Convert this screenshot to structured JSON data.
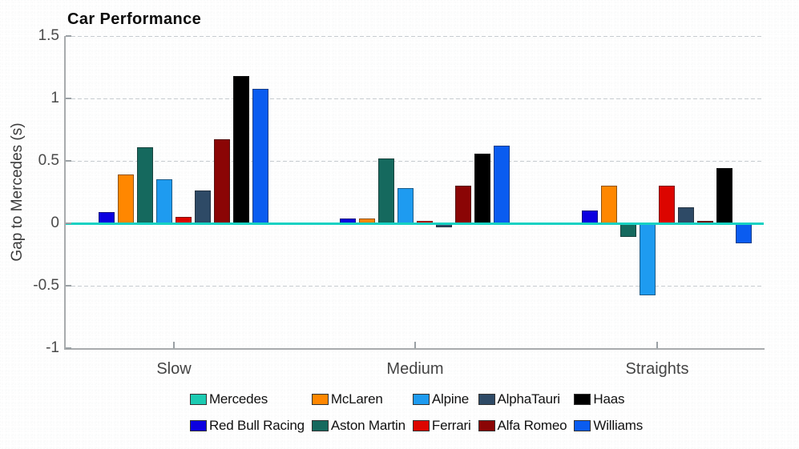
{
  "title": "Car Performance",
  "ylabel": "Gap to Mercedes (s)",
  "chart_data": {
    "type": "bar",
    "title": "Car Performance",
    "xlabel": "",
    "ylabel": "Gap to Mercedes (s)",
    "categories": [
      "Slow",
      "Medium",
      "Straights"
    ],
    "ylim": [
      -1,
      1.5
    ],
    "y_ticks": [
      {
        "label": "1.5",
        "value": 1.5
      },
      {
        "label": "1",
        "value": 1
      },
      {
        "label": "0.5",
        "value": 0.5
      },
      {
        "label": "0",
        "value": 0
      },
      {
        "label": "-0.5",
        "value": -0.5
      },
      {
        "label": "-1",
        "value": -1
      }
    ],
    "grid": true,
    "zero_line_color": "#17d1c2",
    "legend_position": "bottom",
    "series": [
      {
        "name": "Mercedes",
        "color": "#1ccbb2",
        "values": [
          0,
          0,
          0
        ]
      },
      {
        "name": "Red Bull Racing",
        "color": "#0c00e0",
        "values": [
          0.09,
          0.04,
          0.1
        ]
      },
      {
        "name": "McLaren",
        "color": "#ff8700",
        "values": [
          0.39,
          0.04,
          0.3
        ]
      },
      {
        "name": "Aston Martin",
        "color": "#15695e",
        "values": [
          0.61,
          0.52,
          -0.11
        ]
      },
      {
        "name": "Alpine",
        "color": "#1e9bf0",
        "values": [
          0.35,
          0.28,
          -0.58
        ]
      },
      {
        "name": "Ferrari",
        "color": "#dc0500",
        "values": [
          0.05,
          0.02,
          0.3
        ]
      },
      {
        "name": "AlphaTauri",
        "color": "#2e4a66",
        "values": [
          0.26,
          -0.03,
          0.13
        ]
      },
      {
        "name": "Alfa Romeo",
        "color": "#8b0505",
        "values": [
          0.67,
          0.3,
          0.02
        ]
      },
      {
        "name": "Haas",
        "color": "#000000",
        "values": [
          1.18,
          0.56,
          0.44
        ]
      },
      {
        "name": "Williams",
        "color": "#0a5cf0",
        "values": [
          1.08,
          0.62,
          -0.16
        ]
      }
    ],
    "legend_rows": [
      [
        "Mercedes",
        "McLaren",
        "Alpine",
        "AlphaTauri",
        "Haas"
      ],
      [
        "Red Bull Racing",
        "Aston Martin",
        "Ferrari",
        "Alfa Romeo",
        "Williams"
      ]
    ]
  }
}
